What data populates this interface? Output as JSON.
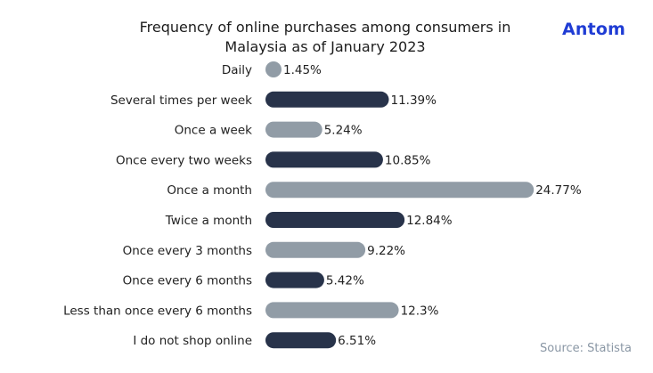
{
  "logo": {
    "text": "Antom",
    "color": "#1f3cd4"
  },
  "source": "Source: Statista",
  "colors": {
    "dark": "#28334a",
    "light": "#919ca6"
  },
  "chart_data": {
    "type": "bar",
    "orientation": "horizontal",
    "title": "Frequency of online purchases among consumers in Malaysia as of January 2023",
    "title_lines": [
      "Frequency of online purchases among consumers in",
      "Malaysia as of January 2023"
    ],
    "xlabel": "",
    "ylabel": "",
    "unit": "%",
    "grid": false,
    "legend": "none",
    "categories": [
      "Daily",
      "Several times per week",
      "Once a week",
      "Once every two weeks",
      "Once a month",
      "Twice a month",
      "Once every 3 months",
      "Once every 6 months",
      "Less than once every 6 months",
      "I do not shop online"
    ],
    "values": [
      1.45,
      11.39,
      5.24,
      10.85,
      24.77,
      12.84,
      9.22,
      5.42,
      12.3,
      6.51
    ],
    "value_labels": [
      "1.45%",
      "11.39%",
      "5.24%",
      "10.85%",
      "24.77%",
      "12.84%",
      "9.22%",
      "5.42%",
      "12.3%",
      "6.51%"
    ],
    "bar_colors": [
      "light",
      "dark",
      "light",
      "dark",
      "light",
      "dark",
      "light",
      "dark",
      "light",
      "dark"
    ]
  }
}
